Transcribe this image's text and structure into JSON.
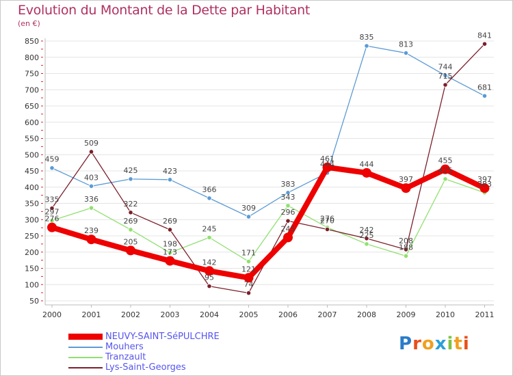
{
  "title": "Evolution du Montant de la Dette par Habitant",
  "subtitle": "(en €)",
  "logo": {
    "text": "Proxiti",
    "letters": [
      "P",
      "r",
      "o",
      "x",
      "i",
      "t",
      "i"
    ],
    "colors": [
      "#2b7cc8",
      "#e8501a",
      "#f0a020",
      "#2b9fd8",
      "#7dc242",
      "#f0a020",
      "#e8501a"
    ]
  },
  "chart_data": {
    "type": "line",
    "title": "Evolution du Montant de la Dette par Habitant",
    "subtitle": "(en €)",
    "x": [
      "2000",
      "2001",
      "2002",
      "2003",
      "2004",
      "2005",
      "2006",
      "2007",
      "2008",
      "2009",
      "2010",
      "2011"
    ],
    "yticks": [
      50,
      100,
      150,
      200,
      250,
      300,
      350,
      400,
      450,
      500,
      550,
      600,
      650,
      700,
      750,
      800,
      850
    ],
    "ylim": [
      50,
      850
    ],
    "grid": "horizontal",
    "legend_position": "bottom-left",
    "series": [
      {
        "name": "NEUVY-SAINT-SéPULCHRE",
        "color": "#ee0000",
        "values": [
          276,
          239,
          205,
          173,
          142,
          121,
          245,
          461,
          444,
          397,
          455,
          397
        ]
      },
      {
        "name": "Mouhers",
        "color": "#5b9bd5",
        "values": [
          459,
          403,
          425,
          423,
          366,
          309,
          383,
          444,
          835,
          813,
          744,
          681
        ]
      },
      {
        "name": "Tranzault",
        "color": "#90e070",
        "values": [
          297,
          336,
          269,
          198,
          245,
          171,
          343,
          276,
          225,
          188,
          425,
          383
        ]
      },
      {
        "name": "Lys-Saint-Georges",
        "color": "#7b1f2a",
        "values": [
          335,
          509,
          322,
          269,
          95,
          74,
          296,
          270,
          242,
          208,
          715,
          841
        ]
      }
    ],
    "labels": [
      [
        "276",
        "239",
        "205",
        "173",
        "142",
        "121",
        "245",
        "461",
        "444",
        "397",
        "455",
        "397"
      ],
      [
        "459",
        "403",
        "425",
        "423",
        "366",
        "309",
        "383",
        "444",
        "835",
        "813",
        "744",
        "681"
      ],
      [
        "297",
        "336",
        "269",
        "198",
        "245",
        "171",
        "343",
        "276",
        "225",
        "188",
        "425",
        "383"
      ],
      [
        "335",
        "509",
        "322",
        "269",
        "95",
        "74",
        "296",
        "270",
        "242",
        "208",
        "715",
        "841"
      ]
    ]
  }
}
